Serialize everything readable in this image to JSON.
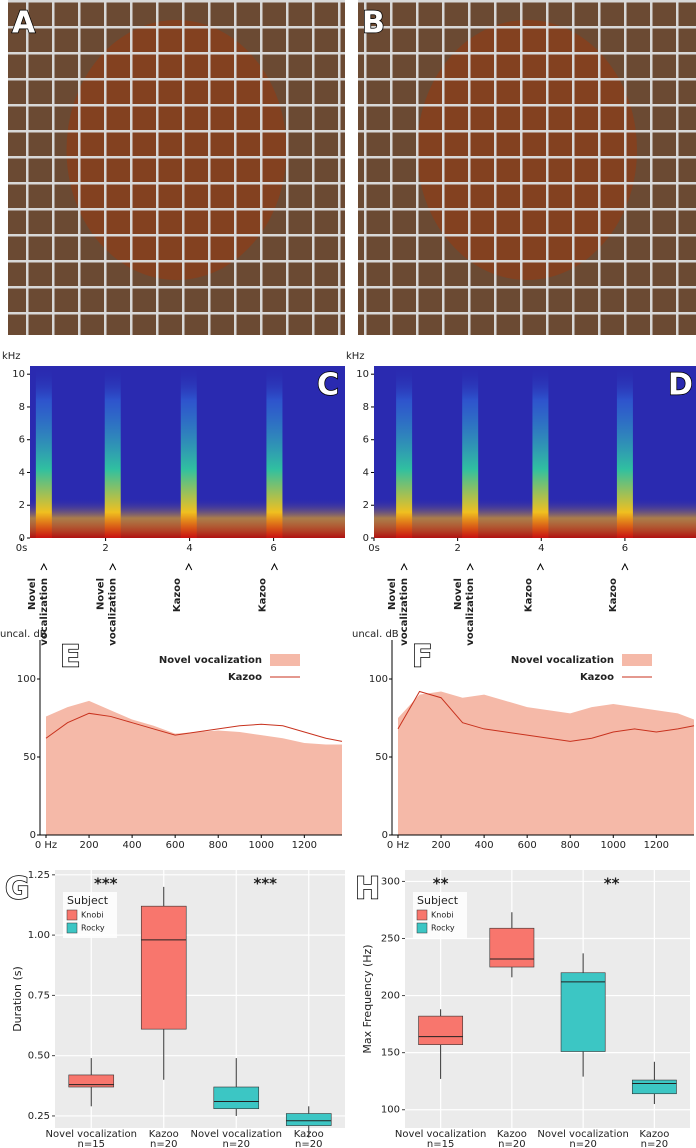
{
  "chart_data": [
    {
      "type": "image",
      "label": "A"
    },
    {
      "type": "image",
      "label": "B"
    },
    {
      "type": "spectrogram",
      "label": "C",
      "y_label": "kHz",
      "xlim": [
        0.2,
        7.7
      ],
      "ylim": [
        0,
        10.5
      ],
      "xticks": [
        {
          "value": 0,
          "label": "0s"
        },
        2,
        4,
        6
      ],
      "yticks": [
        0,
        2,
        4,
        6,
        8,
        10
      ],
      "annotations": [
        {
          "x": 0.53,
          "lines": [
            "Novel",
            "vocalization"
          ]
        },
        {
          "x": 2.17,
          "lines": [
            "Novel",
            "vocalization"
          ]
        },
        {
          "x": 3.98,
          "lines": [
            "Kazoo"
          ]
        },
        {
          "x": 6.02,
          "lines": [
            "Kazoo"
          ]
        }
      ]
    },
    {
      "type": "spectrogram",
      "label": "D",
      "y_label": "kHz",
      "xlim": [
        0,
        7.7
      ],
      "ylim": [
        0,
        10.5
      ],
      "xticks": [
        {
          "value": 0,
          "label": "0s"
        },
        2,
        4,
        6
      ],
      "yticks": [
        0,
        2,
        4,
        6,
        8,
        10
      ],
      "annotations": [
        {
          "x": 0.72,
          "lines": [
            "Novel",
            "vocalization"
          ]
        },
        {
          "x": 2.3,
          "lines": [
            "Novel",
            "vocalization"
          ]
        },
        {
          "x": 3.98,
          "lines": [
            "Kazoo"
          ]
        },
        {
          "x": 6.0,
          "lines": [
            "Kazoo"
          ]
        }
      ]
    },
    {
      "type": "area",
      "label": "E",
      "y_label": "uncal. dB",
      "xlim": [
        0,
        1375
      ],
      "ylim": [
        0,
        125
      ],
      "xticks": [
        {
          "value": 0,
          "label": "0 Hz"
        },
        200,
        400,
        600,
        800,
        1000,
        1200
      ],
      "yticks": [
        0,
        50,
        100
      ],
      "x": [
        0,
        100,
        200,
        300,
        400,
        500,
        600,
        700,
        800,
        900,
        1000,
        1100,
        1200,
        1300,
        1375
      ],
      "series": [
        {
          "name": "Novel vocalization",
          "kind": "area",
          "color": "#f5b9a8",
          "values": [
            76,
            82,
            86,
            80,
            74,
            70,
            65,
            66,
            67,
            66,
            64,
            62,
            59,
            58,
            58
          ]
        },
        {
          "name": "Kazoo",
          "kind": "line",
          "color": "#c8321e",
          "values": [
            62,
            72,
            78,
            76,
            72,
            68,
            64,
            66,
            68,
            70,
            71,
            70,
            66,
            62,
            60
          ]
        }
      ]
    },
    {
      "type": "area",
      "label": "F",
      "y_label": "uncal. dB",
      "xlim": [
        0,
        1375
      ],
      "ylim": [
        0,
        125
      ],
      "xticks": [
        {
          "value": 0,
          "label": "0 Hz"
        },
        200,
        400,
        600,
        800,
        1000,
        1200
      ],
      "yticks": [
        0,
        50,
        100
      ],
      "x": [
        0,
        100,
        200,
        300,
        400,
        500,
        600,
        700,
        800,
        900,
        1000,
        1100,
        1200,
        1300,
        1375
      ],
      "series": [
        {
          "name": "Novel vocalization",
          "kind": "area",
          "color": "#f5b9a8",
          "values": [
            75,
            90,
            92,
            88,
            90,
            86,
            82,
            80,
            78,
            82,
            84,
            82,
            80,
            78,
            74
          ]
        },
        {
          "name": "Kazoo",
          "kind": "line",
          "color": "#c8321e",
          "values": [
            68,
            92,
            88,
            72,
            68,
            66,
            64,
            62,
            60,
            62,
            66,
            68,
            66,
            68,
            70
          ]
        }
      ]
    },
    {
      "type": "box",
      "label": "G",
      "y_label": "Duration (s)",
      "legend_title": "Subject",
      "ylim": [
        0.2,
        1.27
      ],
      "yticks": [
        0.25,
        {
          "value": 0.5,
          "label": "0.50"
        },
        0.75,
        {
          "value": 1,
          "label": "1.00"
        },
        1.25
      ],
      "categories": [
        "Novel vocalization",
        "Kazoo",
        "Novel vocalization",
        "Kazoo"
      ],
      "category_notes": [
        "n=15",
        "n=20",
        "n=20",
        "n=20"
      ],
      "annotations": [
        {
          "x": 0.2,
          "text": "***"
        },
        {
          "x": 2.4,
          "text": "***"
        }
      ],
      "series": [
        {
          "name": "Knobi",
          "color": "#f8766d",
          "values": [
            {
              "min": 0.29,
              "q1": 0.37,
              "median": 0.38,
              "q3": 0.42,
              "max": 0.49
            },
            {
              "min": 0.4,
              "q1": 0.61,
              "median": 0.98,
              "q3": 1.12,
              "max": 1.2
            },
            null,
            null
          ]
        },
        {
          "name": "Rocky",
          "color": "#3cc6c4",
          "values": [
            null,
            null,
            {
              "min": 0.25,
              "q1": 0.28,
              "median": 0.31,
              "q3": 0.37,
              "max": 0.49
            },
            {
              "min": 0.16,
              "q1": 0.21,
              "median": 0.23,
              "q3": 0.26,
              "max": 0.29
            }
          ]
        }
      ]
    },
    {
      "type": "box",
      "label": "H",
      "y_label": "Max Frequency (Hz)",
      "legend_title": "Subject",
      "ylim": [
        84,
        310
      ],
      "yticks": [
        100,
        150,
        200,
        250,
        300
      ],
      "categories": [
        "Novel vocalization",
        "Kazoo",
        "Novel vocalization",
        "Kazoo"
      ],
      "category_notes": [
        "n=15",
        "n=20",
        "n=20",
        "n=20"
      ],
      "annotations": [
        {
          "x": 0,
          "text": "**"
        },
        {
          "x": 2.4,
          "text": "**"
        }
      ],
      "series": [
        {
          "name": "Knobi",
          "color": "#f8766d",
          "values": [
            {
              "min": 127,
              "q1": 157,
              "median": 164,
              "q3": 182,
              "max": 188
            },
            {
              "min": 216,
              "q1": 225,
              "median": 232,
              "q3": 259,
              "max": 273
            },
            null,
            null
          ]
        },
        {
          "name": "Rocky",
          "color": "#3cc6c4",
          "values": [
            null,
            null,
            {
              "min": 129,
              "q1": 151,
              "median": 212,
              "q3": 220,
              "max": 237
            },
            {
              "min": 105,
              "q1": 114,
              "median": 123,
              "q3": 126,
              "max": 142
            }
          ]
        }
      ]
    }
  ]
}
